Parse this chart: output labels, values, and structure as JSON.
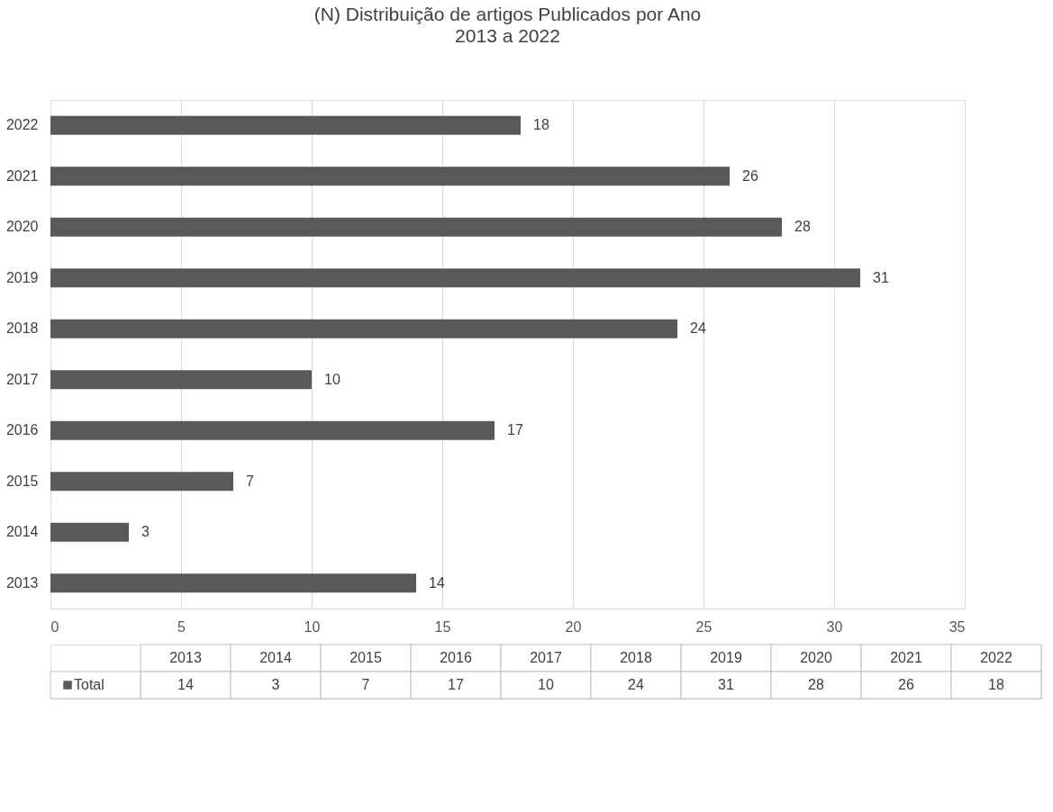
{
  "chart_data": {
    "type": "bar",
    "orientation": "horizontal",
    "title": "(N) Distribuição de artigos Publicados por Ano",
    "subtitle": "2013 a 2022",
    "categories": [
      "2022",
      "2021",
      "2020",
      "2019",
      "2018",
      "2017",
      "2016",
      "2015",
      "2014",
      "2013"
    ],
    "series": [
      {
        "name": "Total",
        "color": "#595959",
        "values": [
          18,
          26,
          28,
          31,
          24,
          10,
          17,
          7,
          3,
          14
        ]
      }
    ],
    "xlim": [
      0,
      35
    ],
    "xticks": [
      0,
      5,
      10,
      15,
      20,
      25,
      30,
      35
    ],
    "grid": "x",
    "data_labels": true,
    "legend": "bottom",
    "annotations": [
      "14",
      "3",
      "7",
      "17",
      "10",
      "24",
      "31",
      "28",
      "26",
      "18"
    ]
  }
}
